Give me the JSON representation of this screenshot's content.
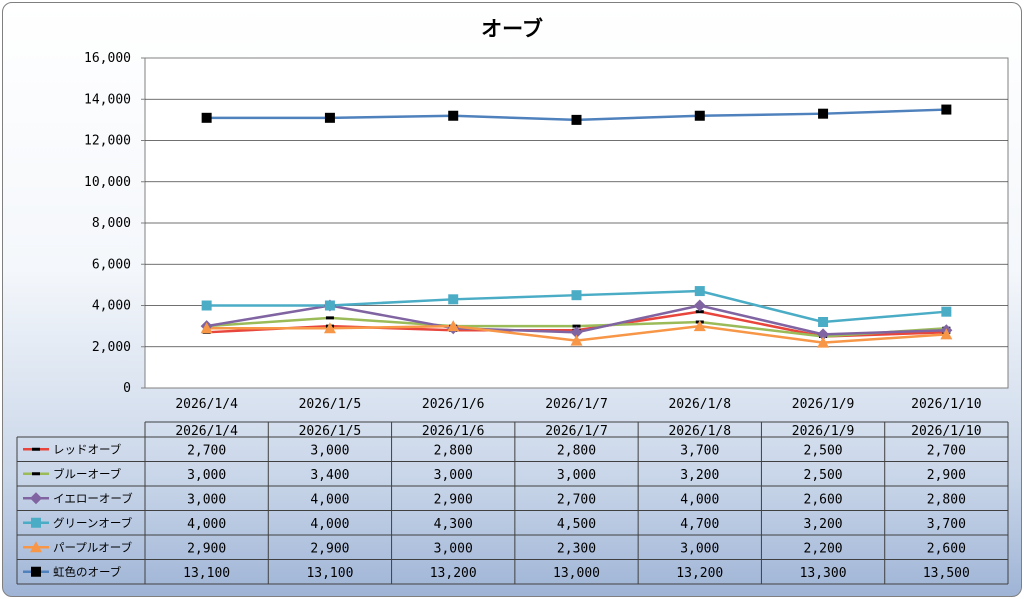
{
  "chart_data": {
    "type": "line",
    "title": "オーブ",
    "xlabel": "",
    "ylabel": "",
    "ylim": [
      0,
      16000
    ],
    "yticks": [
      "0",
      "2,000",
      "4,000",
      "6,000",
      "8,000",
      "10,000",
      "12,000",
      "14,000",
      "16,000"
    ],
    "categories": [
      "2026/1/4",
      "2026/1/5",
      "2026/1/6",
      "2026/1/7",
      "2026/1/8",
      "2026/1/9",
      "2026/1/10"
    ],
    "grid": "horizontal",
    "legend": "data-table-below",
    "series": [
      {
        "name": "レッドオーブ",
        "color": "#e8453c",
        "marker": "dash",
        "values": [
          2700,
          3000,
          2800,
          2800,
          3700,
          2500,
          2700
        ],
        "labels": [
          "2,700",
          "3,000",
          "2,800",
          "2,800",
          "3,700",
          "2,500",
          "2,700"
        ]
      },
      {
        "name": "ブルーオーブ",
        "color": "#9bbb59",
        "marker": "dash",
        "values": [
          3000,
          3400,
          3000,
          3000,
          3200,
          2500,
          2900
        ],
        "labels": [
          "3,000",
          "3,400",
          "3,000",
          "3,000",
          "3,200",
          "2,500",
          "2,900"
        ]
      },
      {
        "name": "イエローオーブ",
        "color": "#8064a2",
        "marker": "diamond",
        "values": [
          3000,
          4000,
          2900,
          2700,
          4000,
          2600,
          2800
        ],
        "labels": [
          "3,000",
          "4,000",
          "2,900",
          "2,700",
          "4,000",
          "2,600",
          "2,800"
        ]
      },
      {
        "name": "グリーンオーブ",
        "color": "#4bacc6",
        "marker": "square",
        "values": [
          4000,
          4000,
          4300,
          4500,
          4700,
          3200,
          3700
        ],
        "labels": [
          "4,000",
          "4,000",
          "4,300",
          "4,500",
          "4,700",
          "3,200",
          "3,700"
        ]
      },
      {
        "name": "パープルオーブ",
        "color": "#f79646",
        "marker": "triangle",
        "values": [
          2900,
          2900,
          3000,
          2300,
          3000,
          2200,
          2600
        ],
        "labels": [
          "2,900",
          "2,900",
          "3,000",
          "2,300",
          "3,000",
          "2,200",
          "2,600"
        ]
      },
      {
        "name": "虹色のオーブ",
        "color": "#4f81bd",
        "marker": "square-black",
        "values": [
          13100,
          13100,
          13200,
          13000,
          13200,
          13300,
          13500
        ],
        "labels": [
          "13,100",
          "13,100",
          "13,200",
          "13,000",
          "13,200",
          "13,300",
          "13,500"
        ]
      }
    ]
  }
}
